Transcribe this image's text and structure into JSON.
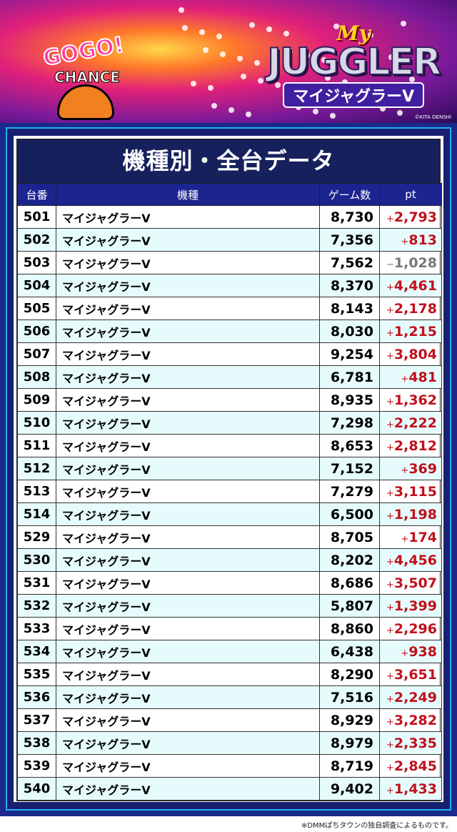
{
  "banner": {
    "gogo": "GOGO!",
    "chance": "CHANCE",
    "logo_my": "My",
    "logo_main": "JUGGLER",
    "logo_sub": "マイジャグラーV",
    "copyright": "©KITA DENSHI"
  },
  "title": "機種別・全台データ",
  "headers": {
    "no": "台番",
    "name": "機種",
    "games": "ゲーム数",
    "pt": "pt"
  },
  "colors": {
    "positive": "#c0101c",
    "negative": "#777777",
    "header": "#1c2490",
    "title_bg": "#16205c",
    "alt_row": "#e6fcfc"
  },
  "rows": [
    {
      "no": "501",
      "name": "マイジャグラーV",
      "games": "8,730",
      "sign": "+",
      "pt": "2,793"
    },
    {
      "no": "502",
      "name": "マイジャグラーV",
      "games": "7,356",
      "sign": "+",
      "pt": "813"
    },
    {
      "no": "503",
      "name": "マイジャグラーV",
      "games": "7,562",
      "sign": "−",
      "pt": "1,028"
    },
    {
      "no": "504",
      "name": "マイジャグラーV",
      "games": "8,370",
      "sign": "+",
      "pt": "4,461"
    },
    {
      "no": "505",
      "name": "マイジャグラーV",
      "games": "8,143",
      "sign": "+",
      "pt": "2,178"
    },
    {
      "no": "506",
      "name": "マイジャグラーV",
      "games": "8,030",
      "sign": "+",
      "pt": "1,215"
    },
    {
      "no": "507",
      "name": "マイジャグラーV",
      "games": "9,254",
      "sign": "+",
      "pt": "3,804"
    },
    {
      "no": "508",
      "name": "マイジャグラーV",
      "games": "6,781",
      "sign": "+",
      "pt": "481"
    },
    {
      "no": "509",
      "name": "マイジャグラーV",
      "games": "8,935",
      "sign": "+",
      "pt": "1,362"
    },
    {
      "no": "510",
      "name": "マイジャグラーV",
      "games": "7,298",
      "sign": "+",
      "pt": "2,222"
    },
    {
      "no": "511",
      "name": "マイジャグラーV",
      "games": "8,653",
      "sign": "+",
      "pt": "2,812"
    },
    {
      "no": "512",
      "name": "マイジャグラーV",
      "games": "7,152",
      "sign": "+",
      "pt": "369"
    },
    {
      "no": "513",
      "name": "マイジャグラーV",
      "games": "7,279",
      "sign": "+",
      "pt": "3,115"
    },
    {
      "no": "514",
      "name": "マイジャグラーV",
      "games": "6,500",
      "sign": "+",
      "pt": "1,198"
    },
    {
      "no": "529",
      "name": "マイジャグラーV",
      "games": "8,705",
      "sign": "+",
      "pt": "174"
    },
    {
      "no": "530",
      "name": "マイジャグラーV",
      "games": "8,202",
      "sign": "+",
      "pt": "4,456"
    },
    {
      "no": "531",
      "name": "マイジャグラーV",
      "games": "8,686",
      "sign": "+",
      "pt": "3,507"
    },
    {
      "no": "532",
      "name": "マイジャグラーV",
      "games": "5,807",
      "sign": "+",
      "pt": "1,399"
    },
    {
      "no": "533",
      "name": "マイジャグラーV",
      "games": "8,860",
      "sign": "+",
      "pt": "2,296"
    },
    {
      "no": "534",
      "name": "マイジャグラーV",
      "games": "6,438",
      "sign": "+",
      "pt": "938"
    },
    {
      "no": "535",
      "name": "マイジャグラーV",
      "games": "8,290",
      "sign": "+",
      "pt": "3,651"
    },
    {
      "no": "536",
      "name": "マイジャグラーV",
      "games": "7,516",
      "sign": "+",
      "pt": "2,249"
    },
    {
      "no": "537",
      "name": "マイジャグラーV",
      "games": "8,929",
      "sign": "+",
      "pt": "3,282"
    },
    {
      "no": "538",
      "name": "マイジャグラーV",
      "games": "8,979",
      "sign": "+",
      "pt": "2,335"
    },
    {
      "no": "539",
      "name": "マイジャグラーV",
      "games": "8,719",
      "sign": "+",
      "pt": "2,845"
    },
    {
      "no": "540",
      "name": "マイジャグラーV",
      "games": "9,402",
      "sign": "+",
      "pt": "1,433"
    }
  ],
  "note": "※DMMぱちタウンの独自調査によるものです。"
}
